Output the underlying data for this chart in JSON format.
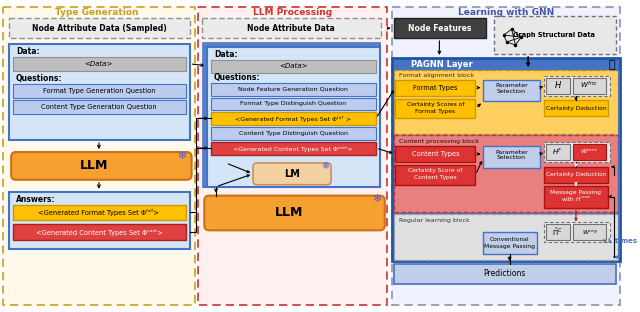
{
  "title_left": "Type Generation",
  "title_mid": "LLM Processing",
  "title_right": "Learning with GNN",
  "bg_color": "#FFFFFF"
}
